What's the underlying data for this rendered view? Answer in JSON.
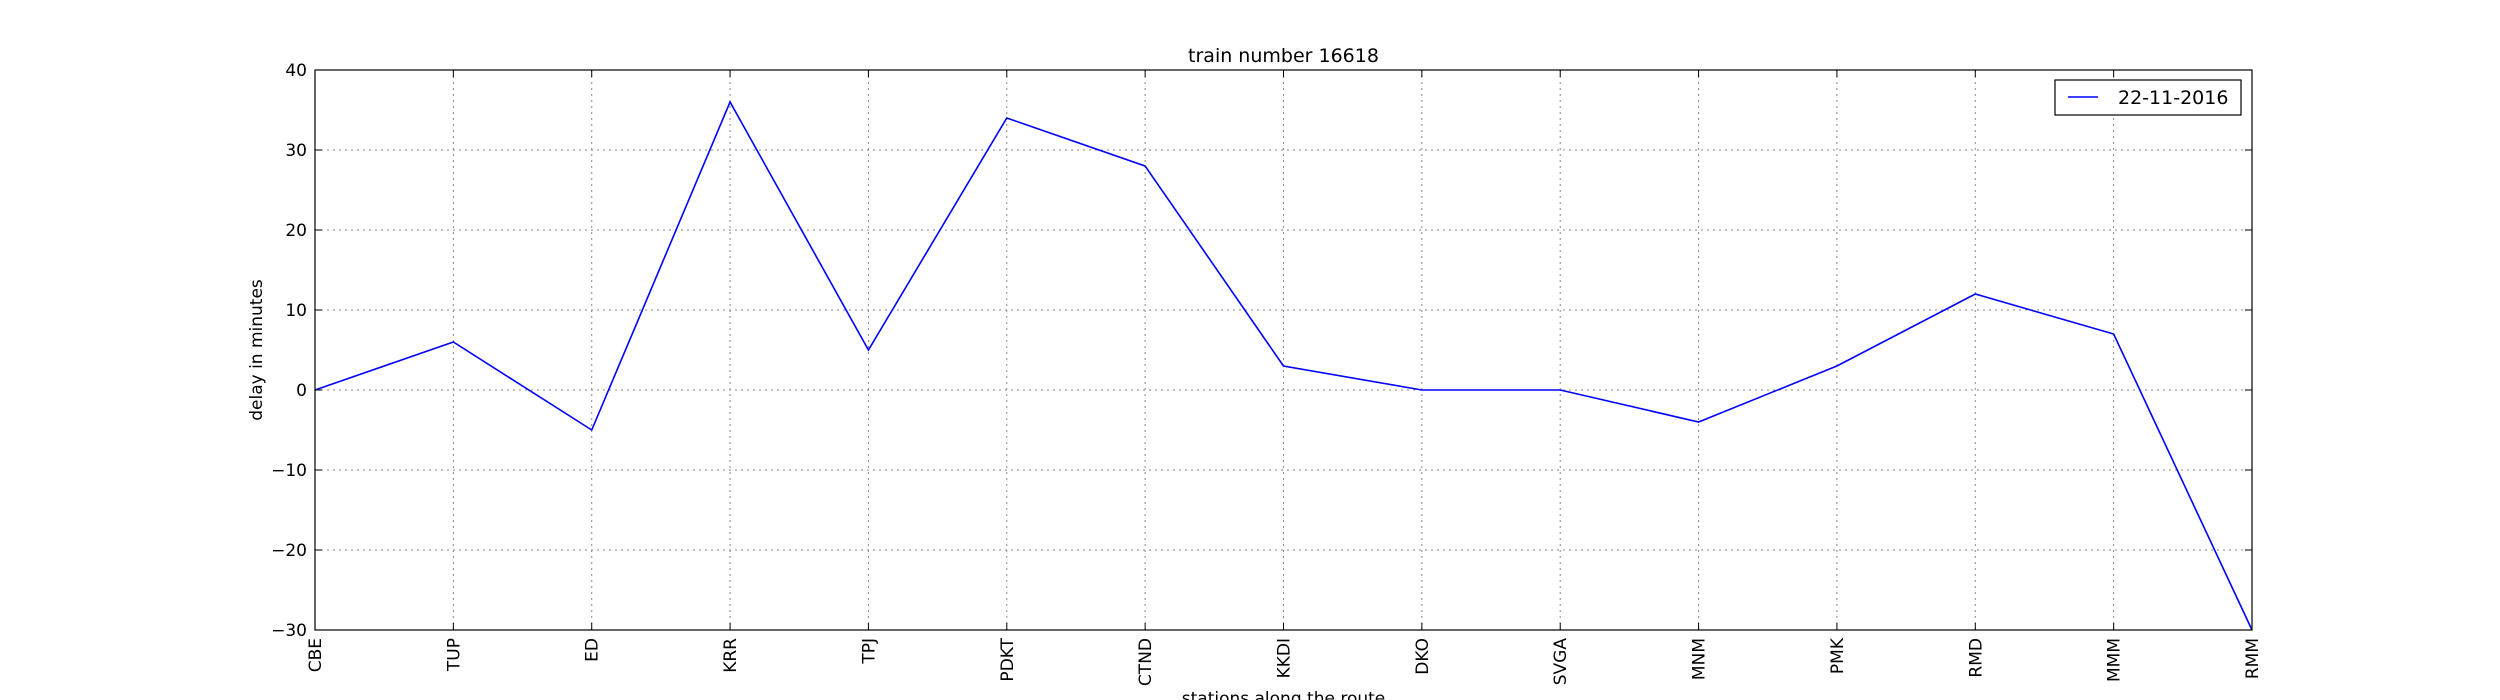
{
  "chart_data": {
    "type": "line",
    "title": "train number 16618",
    "xlabel": "stations along the route",
    "ylabel": "delay in minutes",
    "categories": [
      "CBE",
      "TUP",
      "ED",
      "KRR",
      "TPJ",
      "PDKT",
      "CTND",
      "KKDI",
      "DKO",
      "SVGA",
      "MNM",
      "PMK",
      "RMD",
      "MMM",
      "RMM"
    ],
    "series": [
      {
        "name": "22-11-2016",
        "color": "#0000ff",
        "values": [
          0,
          6,
          -5,
          36,
          5,
          34,
          28,
          3,
          0,
          0,
          -4,
          3,
          12,
          7,
          -30
        ]
      }
    ],
    "ylim": [
      -30,
      40
    ],
    "yticks": [
      -30,
      -20,
      -10,
      0,
      10,
      20,
      30,
      40
    ],
    "ytick_labels": [
      "−30",
      "−20",
      "−10",
      "0",
      "10",
      "20",
      "30",
      "40"
    ],
    "grid": true,
    "legend_position": "top-right"
  }
}
